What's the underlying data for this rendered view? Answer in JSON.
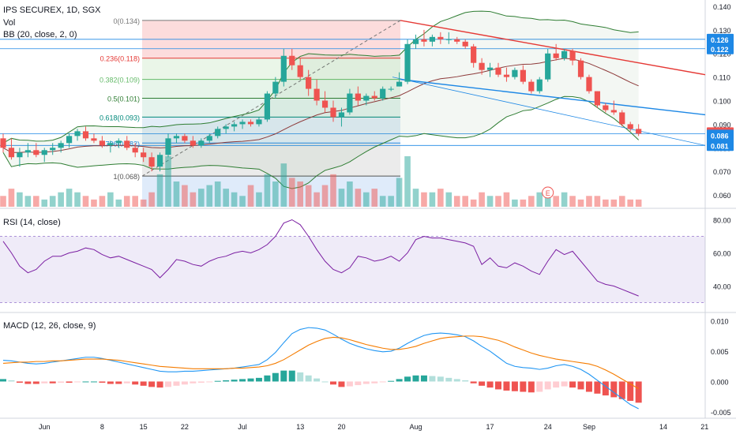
{
  "header": {
    "symbol_line": "IPS SECUREX, 1D, SGX",
    "vol_label": "Vol",
    "bb_label": "BB (20, close, 2, 0)",
    "rsi_label": "RSI (14, close)",
    "macd_label": "MACD (12, 26, close, 9)",
    "earnings_marker": "E"
  },
  "colors": {
    "up": "#26a69a",
    "down": "#ef5350",
    "bb_line": "#2e7d32",
    "bb_basis": "#8d3a3a",
    "rsi_line": "#7b1fa2",
    "macd_line": "#2196f3",
    "signal_line": "#f57c00",
    "trend_red": "#e53935",
    "trend_blue": "#1e88e5"
  },
  "chart_data": [
    {
      "type": "candlestick",
      "name": "price",
      "x_ticks": [
        "Jun",
        "8",
        "15",
        "22",
        "Jul",
        "13",
        "20",
        "Aug",
        "17",
        "24",
        "Sep",
        "14",
        "21"
      ],
      "y_ticks": [
        "0.140",
        "0.130",
        "0.120",
        "0.110",
        "0.100",
        "0.090",
        "0.080",
        "0.070",
        "0.060"
      ],
      "ylim": [
        0.055,
        0.142
      ],
      "price_badges": [
        {
          "value": "0.126",
          "color": "#1e88e5"
        },
        {
          "value": "0.122",
          "color": "#1e88e5"
        },
        {
          "value": "0.086",
          "color": "#ef5350"
        },
        {
          "value": "0.086",
          "color": "#1e88e5"
        },
        {
          "value": "0.081",
          "color": "#1e88e5"
        }
      ],
      "fib_levels": [
        {
          "label": "0(0.134)",
          "value": 0.134
        },
        {
          "label": "0.236(0.118)",
          "value": 0.118
        },
        {
          "label": "0.382(0.109)",
          "value": 0.109
        },
        {
          "label": "0.5(0.101)",
          "value": 0.101
        },
        {
          "label": "0.618(0.093)",
          "value": 0.093
        },
        {
          "label": "0.786(0.082)",
          "value": 0.082
        },
        {
          "label": "1(0.068)",
          "value": 0.068
        }
      ],
      "candles": [
        [
          0.084,
          0.086,
          0.078,
          0.08
        ],
        [
          0.08,
          0.084,
          0.075,
          0.076
        ],
        [
          0.076,
          0.08,
          0.072,
          0.078
        ],
        [
          0.078,
          0.082,
          0.076,
          0.079
        ],
        [
          0.079,
          0.082,
          0.076,
          0.077
        ],
        [
          0.077,
          0.08,
          0.074,
          0.079
        ],
        [
          0.079,
          0.082,
          0.077,
          0.08
        ],
        [
          0.08,
          0.083,
          0.078,
          0.082
        ],
        [
          0.082,
          0.086,
          0.08,
          0.085
        ],
        [
          0.085,
          0.088,
          0.083,
          0.087
        ],
        [
          0.087,
          0.089,
          0.083,
          0.084
        ],
        [
          0.084,
          0.086,
          0.082,
          0.083
        ],
        [
          0.083,
          0.085,
          0.08,
          0.081
        ],
        [
          0.081,
          0.083,
          0.078,
          0.082
        ],
        [
          0.082,
          0.084,
          0.08,
          0.083
        ],
        [
          0.083,
          0.085,
          0.079,
          0.08
        ],
        [
          0.08,
          0.082,
          0.076,
          0.078
        ],
        [
          0.078,
          0.08,
          0.074,
          0.076
        ],
        [
          0.076,
          0.078,
          0.07,
          0.072
        ],
        [
          0.072,
          0.078,
          0.07,
          0.077
        ],
        [
          0.077,
          0.086,
          0.076,
          0.084
        ],
        [
          0.084,
          0.086,
          0.082,
          0.085
        ],
        [
          0.085,
          0.086,
          0.082,
          0.083
        ],
        [
          0.083,
          0.085,
          0.08,
          0.081
        ],
        [
          0.081,
          0.084,
          0.08,
          0.083
        ],
        [
          0.083,
          0.086,
          0.082,
          0.085
        ],
        [
          0.085,
          0.089,
          0.084,
          0.088
        ],
        [
          0.088,
          0.09,
          0.086,
          0.089
        ],
        [
          0.089,
          0.091,
          0.087,
          0.09
        ],
        [
          0.09,
          0.092,
          0.088,
          0.091
        ],
        [
          0.091,
          0.092,
          0.089,
          0.09
        ],
        [
          0.09,
          0.093,
          0.089,
          0.092
        ],
        [
          0.092,
          0.104,
          0.091,
          0.103
        ],
        [
          0.103,
          0.11,
          0.101,
          0.108
        ],
        [
          0.108,
          0.122,
          0.106,
          0.119
        ],
        [
          0.119,
          0.122,
          0.113,
          0.115
        ],
        [
          0.115,
          0.118,
          0.109,
          0.11
        ],
        [
          0.11,
          0.113,
          0.102,
          0.105
        ],
        [
          0.105,
          0.109,
          0.098,
          0.1
        ],
        [
          0.1,
          0.104,
          0.095,
          0.097
        ],
        [
          0.097,
          0.1,
          0.091,
          0.093
        ],
        [
          0.093,
          0.097,
          0.089,
          0.095
        ],
        [
          0.095,
          0.105,
          0.094,
          0.103
        ],
        [
          0.103,
          0.106,
          0.098,
          0.1
        ],
        [
          0.1,
          0.103,
          0.098,
          0.102
        ],
        [
          0.102,
          0.104,
          0.1,
          0.101
        ],
        [
          0.101,
          0.106,
          0.1,
          0.105
        ],
        [
          0.105,
          0.106,
          0.104,
          0.105
        ],
        [
          0.106,
          0.112,
          0.106,
          0.108
        ],
        [
          0.108,
          0.126,
          0.107,
          0.124
        ],
        [
          0.124,
          0.128,
          0.122,
          0.126
        ],
        [
          0.126,
          0.13,
          0.123,
          0.125
        ],
        [
          0.125,
          0.128,
          0.123,
          0.127
        ],
        [
          0.127,
          0.129,
          0.124,
          0.126
        ],
        [
          0.126,
          0.129,
          0.124,
          0.126
        ],
        [
          0.126,
          0.127,
          0.124,
          0.125
        ],
        [
          0.125,
          0.126,
          0.122,
          0.123
        ],
        [
          0.123,
          0.124,
          0.114,
          0.116
        ],
        [
          0.116,
          0.118,
          0.111,
          0.113
        ],
        [
          0.113,
          0.116,
          0.11,
          0.114
        ],
        [
          0.114,
          0.116,
          0.11,
          0.111
        ],
        [
          0.111,
          0.114,
          0.108,
          0.11
        ],
        [
          0.11,
          0.114,
          0.109,
          0.113
        ],
        [
          0.113,
          0.115,
          0.107,
          0.108
        ],
        [
          0.108,
          0.109,
          0.103,
          0.104
        ],
        [
          0.104,
          0.11,
          0.103,
          0.109
        ],
        [
          0.109,
          0.122,
          0.108,
          0.12
        ],
        [
          0.12,
          0.124,
          0.117,
          0.118
        ],
        [
          0.118,
          0.122,
          0.117,
          0.121
        ],
        [
          0.121,
          0.122,
          0.115,
          0.117
        ],
        [
          0.117,
          0.118,
          0.109,
          0.11
        ],
        [
          0.11,
          0.111,
          0.103,
          0.104
        ],
        [
          0.104,
          0.104,
          0.097,
          0.098
        ],
        [
          0.098,
          0.099,
          0.095,
          0.096
        ],
        [
          0.096,
          0.1,
          0.094,
          0.095
        ],
        [
          0.095,
          0.096,
          0.089,
          0.09
        ],
        [
          0.09,
          0.091,
          0.087,
          0.088
        ],
        [
          0.088,
          0.09,
          0.085,
          0.086
        ]
      ],
      "volume": [
        3,
        5,
        4,
        3,
        3,
        2,
        3,
        4,
        5,
        4,
        3,
        2,
        3,
        4,
        2,
        3,
        3,
        2,
        4,
        9,
        14,
        7,
        6,
        4,
        5,
        6,
        7,
        5,
        4,
        3,
        6,
        4,
        9,
        7,
        12,
        8,
        7,
        6,
        4,
        6,
        9,
        5,
        7,
        5,
        4,
        5,
        3,
        3,
        8,
        14,
        5,
        4,
        4,
        5,
        4,
        3,
        3,
        2,
        4,
        3,
        3,
        4,
        2,
        2,
        3,
        4,
        5,
        3,
        4,
        3,
        2,
        3,
        3,
        2,
        2,
        3,
        2,
        2
      ],
      "annotations": [
        "E"
      ]
    },
    {
      "type": "line",
      "name": "RSI (14, close)",
      "y_ticks": [
        "80.00",
        "60.00",
        "40.00"
      ],
      "ylim": [
        25,
        85
      ],
      "values": [
        67,
        60,
        52,
        48,
        50,
        55,
        58,
        58,
        60,
        61,
        63,
        62,
        59,
        57,
        58,
        56,
        54,
        52,
        50,
        45,
        50,
        56,
        55,
        53,
        52,
        55,
        57,
        58,
        60,
        61,
        60,
        62,
        65,
        70,
        78,
        80,
        77,
        70,
        62,
        55,
        50,
        48,
        51,
        58,
        57,
        55,
        56,
        58,
        55,
        60,
        68,
        70,
        69,
        69,
        68,
        67,
        66,
        64,
        53,
        57,
        52,
        51,
        54,
        52,
        49,
        47,
        55,
        62,
        59,
        61,
        55,
        49,
        43,
        41,
        40,
        38,
        36,
        34
      ]
    },
    {
      "type": "bar+line",
      "name": "MACD (12, 26, close, 9)",
      "y_ticks": [
        "0.010",
        "0.005",
        "0.000",
        "-0.005"
      ],
      "ylim": [
        -0.0058,
        0.011
      ],
      "histogram": [
        0.0004,
        0.0002,
        -0.0002,
        -0.0004,
        -0.0004,
        -0.0003,
        -0.0003,
        -0.0002,
        -0.0002,
        -0.0001,
        0.0,
        0.0,
        -0.0002,
        -0.0004,
        -0.0004,
        -0.0003,
        -0.0005,
        -0.0007,
        -0.0009,
        -0.001,
        -0.0009,
        -0.0007,
        -0.0005,
        -0.0003,
        -0.0002,
        -0.0001,
        0.0001,
        0.0002,
        0.0003,
        0.0004,
        0.0005,
        0.0006,
        0.001,
        0.0014,
        0.0018,
        0.0018,
        0.0015,
        0.001,
        0.0005,
        0.0,
        -0.0005,
        -0.0009,
        -0.0008,
        -0.0006,
        -0.0004,
        -0.0003,
        -0.0001,
        0.0001,
        0.0004,
        0.0008,
        0.001,
        0.001,
        0.0009,
        0.0008,
        0.0006,
        0.0004,
        0.0002,
        -0.0003,
        -0.0007,
        -0.001,
        -0.0013,
        -0.0015,
        -0.0016,
        -0.0017,
        -0.0018,
        -0.0017,
        -0.0013,
        -0.001,
        -0.0008,
        -0.001,
        -0.0013,
        -0.0017,
        -0.002,
        -0.0023,
        -0.0026,
        -0.0029,
        -0.0032,
        -0.0035
      ],
      "macd": [
        0.0035,
        0.0034,
        0.0032,
        0.003,
        0.0029,
        0.003,
        0.0032,
        0.0034,
        0.0036,
        0.0038,
        0.004,
        0.004,
        0.0038,
        0.0035,
        0.0032,
        0.0029,
        0.0026,
        0.0023,
        0.002,
        0.0017,
        0.0016,
        0.0016,
        0.0017,
        0.0017,
        0.0018,
        0.0019,
        0.002,
        0.0021,
        0.0022,
        0.0024,
        0.0026,
        0.0028,
        0.0036,
        0.0048,
        0.0064,
        0.0079,
        0.0086,
        0.0089,
        0.0088,
        0.0085,
        0.0078,
        0.007,
        0.0063,
        0.0058,
        0.0054,
        0.0051,
        0.0049,
        0.005,
        0.0055,
        0.0063,
        0.007,
        0.0076,
        0.0079,
        0.008,
        0.0079,
        0.0077,
        0.0074,
        0.0067,
        0.0058,
        0.005,
        0.004,
        0.003,
        0.0025,
        0.0023,
        0.0022,
        0.002,
        0.0022,
        0.0026,
        0.0028,
        0.0025,
        0.002,
        0.0012,
        0.0002,
        -0.0008,
        -0.0018,
        -0.0028,
        -0.0038,
        -0.0045
      ],
      "signal": [
        0.003,
        0.0031,
        0.0032,
        0.0032,
        0.0033,
        0.0033,
        0.0034,
        0.0034,
        0.0035,
        0.0036,
        0.0037,
        0.0037,
        0.0037,
        0.0036,
        0.0035,
        0.0033,
        0.0031,
        0.0029,
        0.0027,
        0.0025,
        0.0024,
        0.0023,
        0.0022,
        0.0021,
        0.0021,
        0.0021,
        0.0021,
        0.0021,
        0.0022,
        0.0022,
        0.0023,
        0.0024,
        0.0026,
        0.003,
        0.0036,
        0.0044,
        0.0052,
        0.006,
        0.0066,
        0.0071,
        0.0073,
        0.0072,
        0.0069,
        0.0065,
        0.0061,
        0.0058,
        0.0055,
        0.0053,
        0.0053,
        0.0055,
        0.0058,
        0.0063,
        0.0067,
        0.0071,
        0.0073,
        0.0074,
        0.0075,
        0.0075,
        0.0074,
        0.0071,
        0.0068,
        0.0063,
        0.0057,
        0.0052,
        0.0047,
        0.0043,
        0.004,
        0.0037,
        0.0035,
        0.0033,
        0.0031,
        0.0029,
        0.0025,
        0.0019,
        0.0012,
        0.0004,
        -0.0004,
        -0.0012
      ]
    }
  ]
}
